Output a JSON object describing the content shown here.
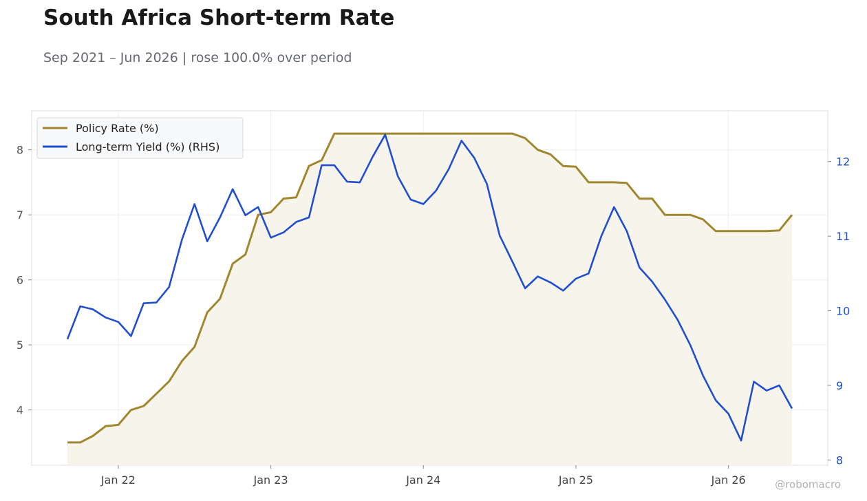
{
  "header": {
    "title": "South Africa Short-term Rate",
    "subtitle": "Sep 2021 – Jun 2026 | rose 100.0% over period"
  },
  "watermark": "@robomacro",
  "chart_data": {
    "type": "line",
    "grid": true,
    "legend_position": "top-left",
    "x_start": "2021-09",
    "x_end": "2026-06",
    "x_ticks": [
      "Jan 22",
      "Jan 23",
      "Jan 24",
      "Jan 25",
      "Jan 26"
    ],
    "y_left": {
      "ticks": [
        4,
        5,
        6,
        7,
        8
      ],
      "range": [
        3.15,
        8.6
      ]
    },
    "y_right": {
      "ticks": [
        8,
        9,
        10,
        11,
        12
      ],
      "range": [
        7.93,
        12.68
      ]
    },
    "colors": {
      "policy": "#a0862c",
      "yield": "#1f4fcf",
      "fill": "#f7f4ec"
    },
    "series": [
      {
        "name": "Policy Rate (%)",
        "axis": "left",
        "fill": true,
        "x": [
          "2021-09",
          "2021-10",
          "2021-11",
          "2021-12",
          "2022-01",
          "2022-02",
          "2022-03",
          "2022-04",
          "2022-05",
          "2022-06",
          "2022-07",
          "2022-08",
          "2022-09",
          "2022-10",
          "2022-11",
          "2022-12",
          "2023-01",
          "2023-02",
          "2023-03",
          "2023-04",
          "2023-05",
          "2023-06",
          "2023-07",
          "2023-08",
          "2023-09",
          "2023-10",
          "2023-11",
          "2023-12",
          "2024-01",
          "2024-02",
          "2024-03",
          "2024-04",
          "2024-05",
          "2024-06",
          "2024-07",
          "2024-08",
          "2024-09",
          "2024-10",
          "2024-11",
          "2024-12",
          "2025-01",
          "2025-02",
          "2025-03",
          "2025-04",
          "2025-05",
          "2025-06",
          "2025-07",
          "2025-08",
          "2025-09",
          "2025-10",
          "2025-11",
          "2025-12",
          "2026-01",
          "2026-02",
          "2026-03",
          "2026-04",
          "2026-05",
          "2026-06"
        ],
        "values": [
          3.5,
          3.5,
          3.6,
          3.75,
          3.77,
          4.0,
          4.06,
          4.25,
          4.44,
          4.75,
          4.97,
          5.5,
          5.71,
          6.25,
          6.39,
          7.0,
          7.04,
          7.25,
          7.27,
          7.75,
          7.84,
          8.25,
          8.25,
          8.25,
          8.25,
          8.25,
          8.25,
          8.25,
          8.25,
          8.25,
          8.25,
          8.25,
          8.25,
          8.25,
          8.25,
          8.25,
          8.18,
          8.0,
          7.93,
          7.75,
          7.74,
          7.5,
          7.5,
          7.5,
          7.49,
          7.25,
          7.25,
          7.0,
          7.0,
          7.0,
          6.93,
          6.75,
          6.75,
          6.75,
          6.75,
          6.75,
          6.76,
          7.0
        ]
      },
      {
        "name": "Long-term Yield (%) (RHS)",
        "axis": "right",
        "x": [
          "2021-09",
          "2021-10",
          "2021-11",
          "2021-12",
          "2022-01",
          "2022-02",
          "2022-03",
          "2022-04",
          "2022-05",
          "2022-06",
          "2022-07",
          "2022-08",
          "2022-09",
          "2022-10",
          "2022-11",
          "2022-12",
          "2023-01",
          "2023-02",
          "2023-03",
          "2023-04",
          "2023-05",
          "2023-06",
          "2023-07",
          "2023-08",
          "2023-09",
          "2023-10",
          "2023-11",
          "2023-12",
          "2024-01",
          "2024-02",
          "2024-03",
          "2024-04",
          "2024-05",
          "2024-06",
          "2024-07",
          "2024-08",
          "2024-09",
          "2024-10",
          "2024-11",
          "2024-12",
          "2025-01",
          "2025-02",
          "2025-03",
          "2025-04",
          "2025-05",
          "2025-06",
          "2025-07",
          "2025-08",
          "2025-09",
          "2025-10",
          "2025-11",
          "2025-12",
          "2026-01",
          "2026-02",
          "2026-03",
          "2026-04",
          "2026-05",
          "2026-06"
        ],
        "values": [
          9.62,
          10.06,
          10.02,
          9.91,
          9.85,
          9.66,
          10.1,
          10.11,
          10.32,
          10.95,
          11.43,
          10.93,
          11.25,
          11.63,
          11.28,
          11.39,
          10.98,
          11.05,
          11.19,
          11.25,
          11.95,
          11.95,
          11.73,
          11.72,
          12.06,
          12.36,
          11.8,
          11.49,
          11.43,
          11.61,
          11.9,
          12.28,
          12.05,
          11.7,
          11.01,
          10.66,
          10.3,
          10.46,
          10.38,
          10.27,
          10.43,
          10.5,
          11.0,
          11.39,
          11.07,
          10.58,
          10.39,
          10.15,
          9.88,
          9.54,
          9.13,
          8.8,
          8.62,
          8.26,
          9.05,
          8.93,
          9.0,
          8.69
        ]
      }
    ]
  }
}
